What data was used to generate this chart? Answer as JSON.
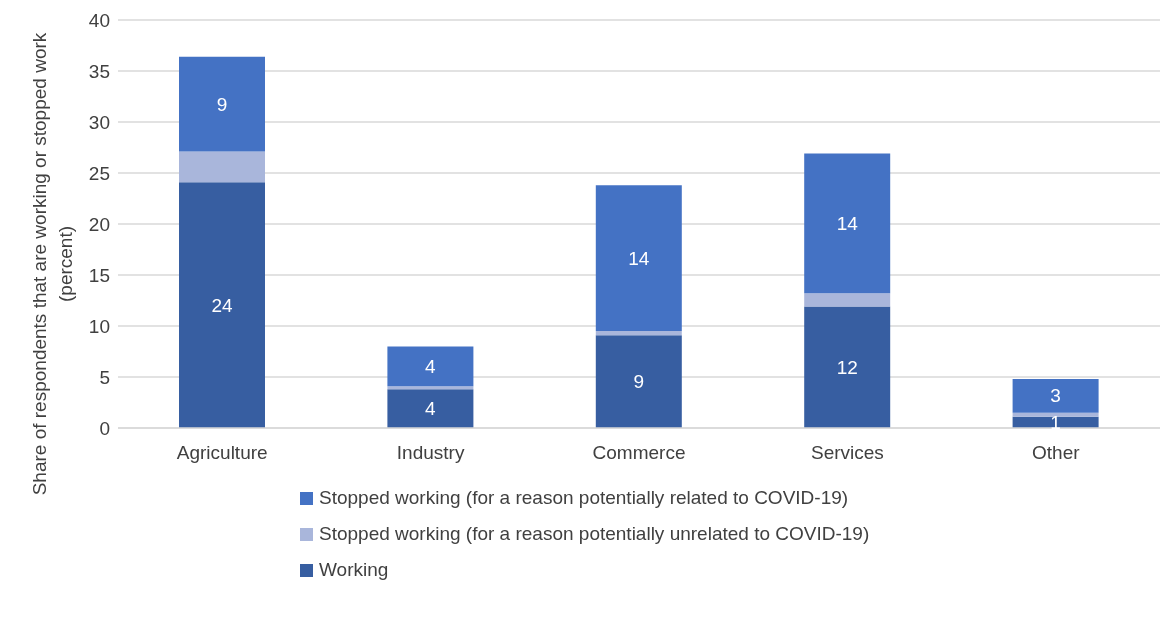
{
  "chart_data": {
    "type": "bar",
    "stacked": true,
    "ylabel": "Share of respondents that are working or stopped work (percent)",
    "categories": [
      "Agriculture",
      "Industry",
      "Commerce",
      "Services",
      "Other"
    ],
    "series": [
      {
        "name": "Working",
        "color": "#375ea1",
        "values": [
          24.1,
          3.8,
          9.1,
          11.9,
          1.1
        ],
        "value_labels": [
          "24",
          "4",
          "9",
          "12",
          "1"
        ]
      },
      {
        "name": "Stopped working (for a reason potentially unrelated to COVID-19)",
        "color": "#a9b6db",
        "values": [
          3.0,
          0.3,
          0.4,
          1.3,
          0.4
        ],
        "value_labels": [
          null,
          null,
          null,
          null,
          null
        ]
      },
      {
        "name": "Stopped working (for a reason potentially related to COVID-19)",
        "color": "#4472c4",
        "values": [
          9.3,
          3.9,
          14.3,
          13.7,
          3.3
        ],
        "value_labels": [
          "9",
          "4",
          "14",
          "14",
          "3"
        ]
      }
    ],
    "ylim": [
      0,
      40
    ],
    "yticks": [
      0,
      5,
      10,
      15,
      20,
      25,
      30,
      35,
      40
    ],
    "grid": "y",
    "legend": "bottom"
  }
}
